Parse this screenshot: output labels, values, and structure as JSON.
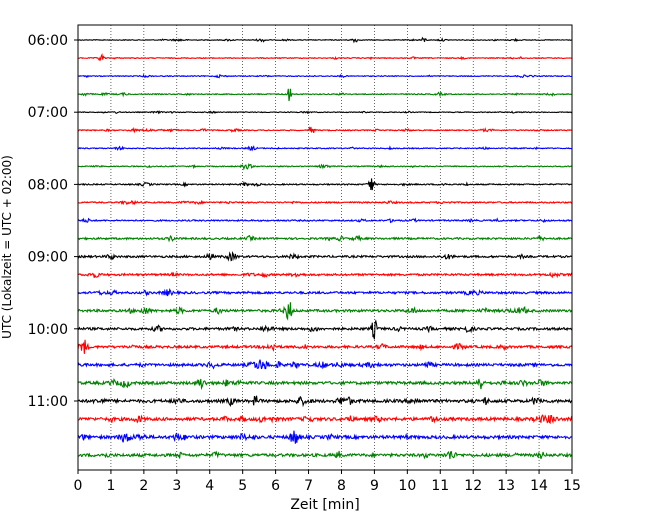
{
  "chart_data": {
    "type": "line",
    "subtype": "helicorder",
    "xlabel": "Zeit  [min]",
    "ylabel": "UTC (Lokalzeit = UTC + 02:00)",
    "xlim": [
      0,
      15
    ],
    "x_ticks": [
      "0",
      "1",
      "2",
      "3",
      "4",
      "5",
      "6",
      "7",
      "8",
      "9",
      "10",
      "11",
      "12",
      "13",
      "14",
      "15"
    ],
    "y_tick_labels": [
      "06:00",
      "07:00",
      "08:00",
      "09:00",
      "10:00",
      "11:00"
    ],
    "vertical_grid": "dotted, every 1 min",
    "trace_interval_min": 15,
    "first_trace": "06:00",
    "trace_count": 24,
    "trace_colors": [
      "#000000",
      "#ff0000",
      "#0000ff",
      "#008000"
    ],
    "amplitude_level": [
      0.18,
      0.22,
      0.22,
      0.25,
      0.2,
      0.25,
      0.25,
      0.25,
      0.3,
      0.35,
      0.35,
      0.45,
      0.5,
      0.5,
      0.55,
      0.6,
      0.6,
      0.6,
      0.65,
      0.7,
      0.75,
      0.75,
      0.75,
      0.7
    ],
    "events": [
      {
        "trace": 0,
        "x": 8.4,
        "amp": 0.6
      },
      {
        "trace": 0,
        "x": 10.5,
        "amp": 0.5
      },
      {
        "trace": 1,
        "x": 0.7,
        "amp": 0.8
      },
      {
        "trace": 3,
        "x": 6.4,
        "amp": 1.6
      },
      {
        "trace": 5,
        "x": 7.1,
        "amp": 0.8
      },
      {
        "trace": 8,
        "x": 8.9,
        "amp": 1.7
      },
      {
        "trace": 12,
        "x": 4.0,
        "amp": 0.8
      },
      {
        "trace": 15,
        "x": 6.4,
        "amp": 2.2
      },
      {
        "trace": 16,
        "x": 9.0,
        "amp": 2.0
      },
      {
        "trace": 17,
        "x": 0.2,
        "amp": 1.2
      },
      {
        "trace": 19,
        "x": 12.2,
        "amp": 1.6
      },
      {
        "trace": 21,
        "x": 10.8,
        "amp": 1.0
      }
    ]
  }
}
